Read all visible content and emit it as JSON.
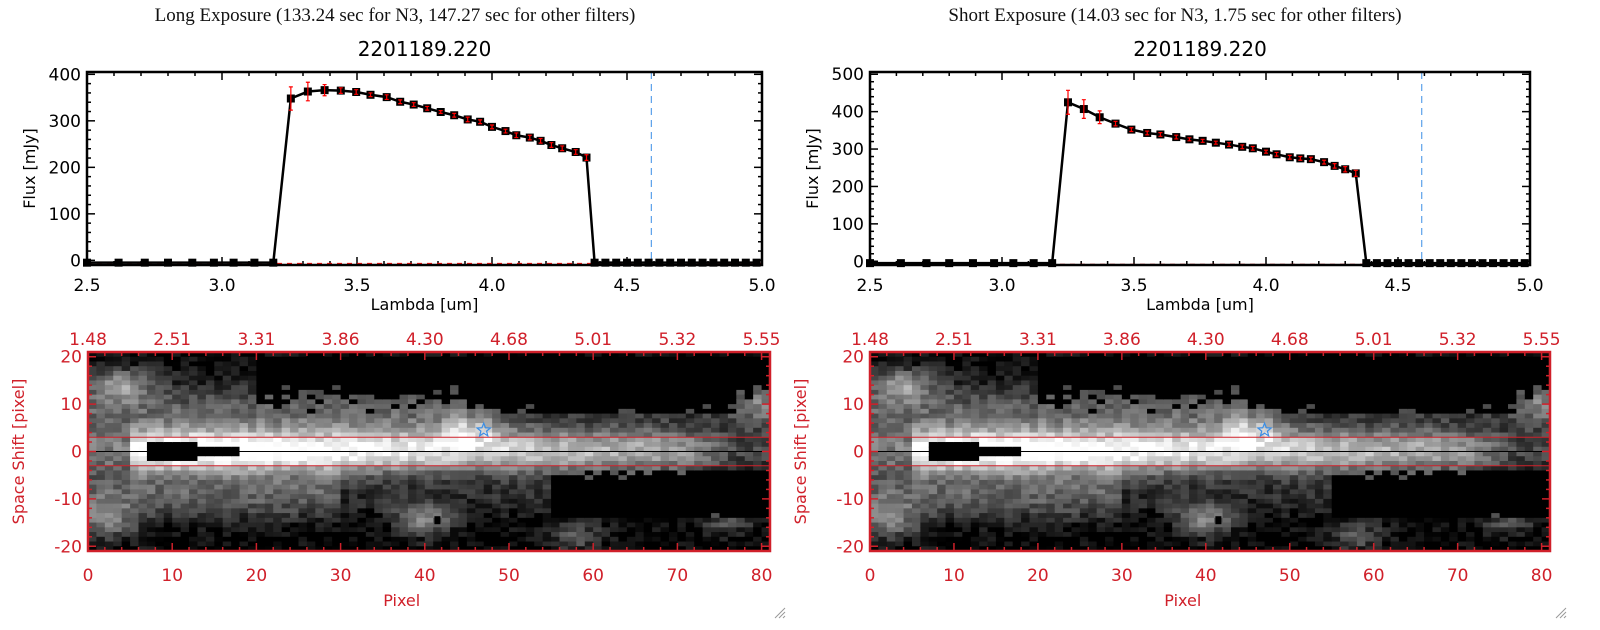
{
  "chart_data": [
    {
      "type": "line",
      "title": "Long Exposure (133.24 sec for N3, 147.27 sec for other filters)",
      "subtitle": "2201189.220",
      "xlabel": "Lambda [um]",
      "ylabel": "Flux [mJy]",
      "xlim": [
        2.5,
        5.0
      ],
      "ylim": [
        -10,
        405
      ],
      "xticks": [
        "2.5",
        "3.0",
        "3.5",
        "4.0",
        "4.5",
        "5.0"
      ],
      "yticks": [
        "0",
        "100",
        "200",
        "300",
        "400"
      ],
      "ytick_values": [
        0,
        100,
        200,
        300,
        400
      ],
      "xtick_values": [
        2.5,
        3.0,
        3.5,
        4.0,
        4.5,
        5.0
      ],
      "vline": 4.59,
      "x": [
        2.5,
        2.617,
        2.714,
        2.8,
        2.89,
        2.97,
        3.043,
        3.12,
        3.19,
        3.255,
        3.318,
        3.38,
        3.44,
        3.497,
        3.55,
        3.61,
        3.66,
        3.71,
        3.76,
        3.81,
        3.86,
        3.91,
        3.956,
        4.0,
        4.05,
        4.09,
        4.14,
        4.18,
        4.22,
        4.26,
        4.31,
        4.35,
        4.38,
        4.42,
        4.46,
        4.5,
        4.54,
        4.58,
        4.62,
        4.66,
        4.7,
        4.74,
        4.78,
        4.82,
        4.86,
        4.9,
        4.94,
        4.98
      ],
      "y": [
        -5,
        -5,
        -5,
        -5,
        -5,
        -5,
        -5,
        -5,
        -5,
        348,
        363,
        366,
        365,
        362,
        356,
        351,
        341,
        335,
        327,
        319,
        312,
        303,
        298,
        287,
        278,
        269,
        264,
        257,
        248,
        241,
        233,
        221,
        -5,
        -5,
        -5,
        -5,
        -5,
        -5,
        -5,
        -5,
        -5,
        -5,
        -5,
        -5,
        -5,
        -5,
        -5,
        -5
      ],
      "err": [
        0,
        0,
        0,
        0,
        0,
        0,
        0,
        0,
        0,
        25,
        20,
        12,
        6,
        5,
        4,
        5,
        4,
        4,
        4,
        3,
        4,
        5,
        4,
        4,
        4,
        5,
        5,
        5,
        5,
        5,
        5,
        6,
        0,
        0,
        0,
        0,
        0,
        0,
        0,
        0,
        0,
        0,
        0,
        0,
        0,
        0,
        0,
        0
      ]
    },
    {
      "type": "line",
      "title": "Short Exposure (14.03 sec for N3, 1.75 sec for other filters)",
      "subtitle": "2201189.220",
      "xlabel": "Lambda [um]",
      "ylabel": "Flux [mJy]",
      "xlim": [
        2.5,
        5.0
      ],
      "ylim": [
        -10,
        506
      ],
      "xticks": [
        "2.5",
        "3.0",
        "3.5",
        "4.0",
        "4.5",
        "5.0"
      ],
      "yticks": [
        "0",
        "100",
        "200",
        "300",
        "400",
        "500"
      ],
      "ytick_values": [
        0,
        100,
        200,
        300,
        400,
        500
      ],
      "xtick_values": [
        2.5,
        3.0,
        3.5,
        4.0,
        4.5,
        5.0
      ],
      "vline": 4.59,
      "x": [
        2.5,
        2.617,
        2.714,
        2.8,
        2.89,
        2.97,
        3.043,
        3.12,
        3.19,
        3.25,
        3.31,
        3.37,
        3.43,
        3.49,
        3.55,
        3.6,
        3.66,
        3.71,
        3.76,
        3.81,
        3.86,
        3.91,
        3.95,
        4.0,
        4.04,
        4.09,
        4.13,
        4.17,
        4.22,
        4.26,
        4.3,
        4.34,
        4.38,
        4.42,
        4.46,
        4.5,
        4.54,
        4.58,
        4.62,
        4.66,
        4.7,
        4.74,
        4.78,
        4.82,
        4.86,
        4.9,
        4.94,
        4.98
      ],
      "y": [
        -5,
        -5,
        -5,
        -5,
        -5,
        -5,
        -5,
        -5,
        -5,
        425,
        407,
        385,
        368,
        352,
        343,
        339,
        332,
        326,
        322,
        317,
        312,
        306,
        302,
        293,
        286,
        278,
        275,
        273,
        265,
        255,
        246,
        235,
        -5,
        -5,
        -5,
        -5,
        -5,
        -5,
        -5,
        -5,
        -5,
        -5,
        -5,
        -5,
        -5,
        -5,
        -5,
        -5
      ],
      "err": [
        0,
        0,
        0,
        0,
        0,
        0,
        0,
        0,
        0,
        32,
        25,
        17,
        6,
        5,
        5,
        5,
        5,
        4,
        4,
        4,
        5,
        5,
        5,
        4,
        5,
        5,
        5,
        5,
        5,
        6,
        7,
        8,
        0,
        0,
        0,
        0,
        0,
        0,
        0,
        0,
        0,
        0,
        0,
        0,
        0,
        0,
        0,
        0
      ]
    },
    {
      "type": "heatmap",
      "xlabel": "Pixel",
      "ylabel": "Space Shift [pixel]",
      "xlim": [
        0,
        81
      ],
      "ylim": [
        -21,
        21
      ],
      "xticks": [
        "0",
        "10",
        "20",
        "30",
        "40",
        "50",
        "60",
        "70",
        "80"
      ],
      "yticks": [
        "20",
        "10",
        "0",
        "-10",
        "-20"
      ],
      "top_ticks": [
        "1.48",
        "2.51",
        "3.31",
        "3.86",
        "4.30",
        "4.68",
        "5.01",
        "5.32",
        "5.55"
      ],
      "aperture": [
        -3,
        3
      ],
      "star": [
        47,
        4.5
      ],
      "dot": [
        41.5,
        -14.5
      ]
    },
    {
      "type": "heatmap",
      "xlabel": "Pixel",
      "ylabel": "Space Shift [pixel]",
      "xlim": [
        0,
        81
      ],
      "ylim": [
        -21,
        21
      ],
      "xticks": [
        "0",
        "10",
        "20",
        "30",
        "40",
        "50",
        "60",
        "70",
        "80"
      ],
      "yticks": [
        "20",
        "10",
        "0",
        "-10",
        "-20"
      ],
      "top_ticks": [
        "1.48",
        "2.51",
        "3.31",
        "3.86",
        "4.30",
        "4.68",
        "5.01",
        "5.32",
        "5.55"
      ],
      "aperture": [
        -3,
        3
      ],
      "star": [
        47,
        4.5
      ],
      "dot": [
        41.5,
        -14.5
      ]
    }
  ],
  "colors": {
    "axis_red": "#d0202a",
    "err_red": "#ff0000",
    "vline_blue": "#3a8ee6",
    "star_blue": "#3a8ee6"
  }
}
